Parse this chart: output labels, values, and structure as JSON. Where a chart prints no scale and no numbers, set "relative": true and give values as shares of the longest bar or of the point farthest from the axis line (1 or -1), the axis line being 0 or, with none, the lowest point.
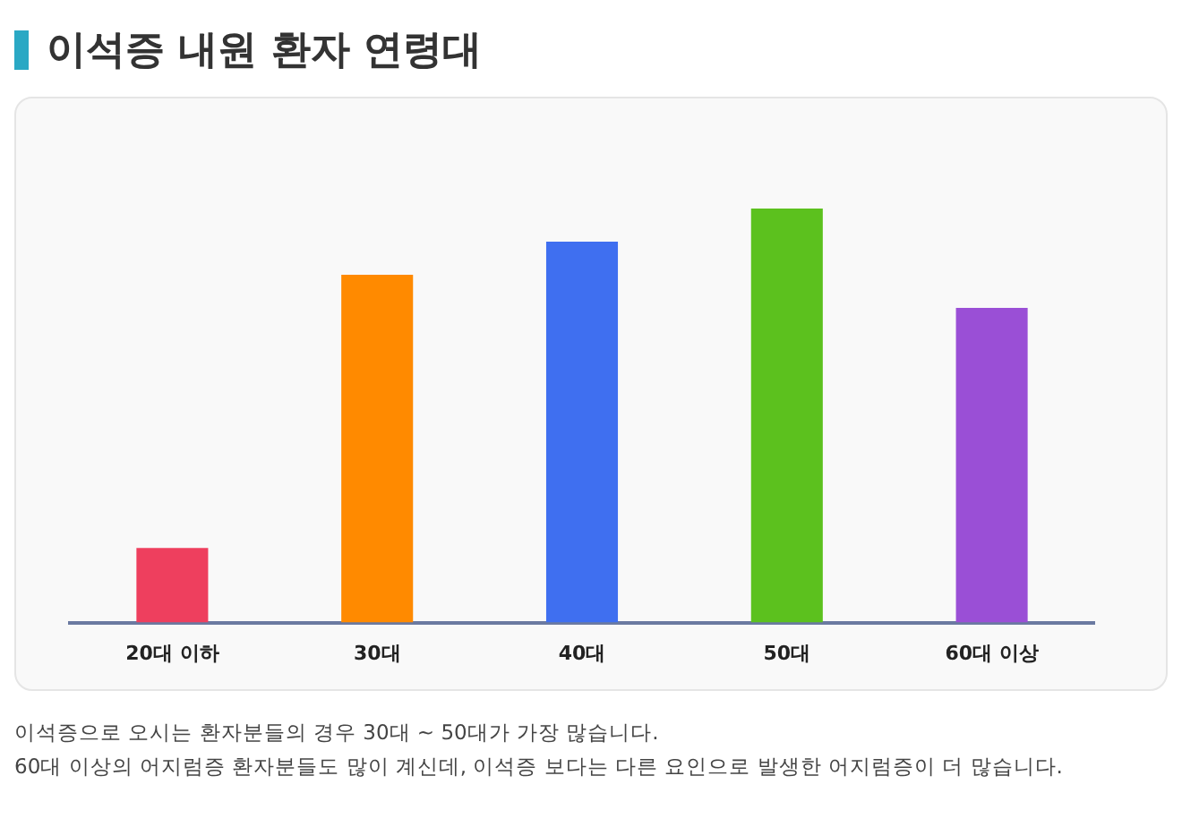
{
  "chart_data": {
    "type": "bar",
    "title": "이석증 내원 환자 연령대",
    "categories": [
      "20대 이하",
      "30대",
      "40대",
      "50대",
      "60대 이상"
    ],
    "values": [
      0.18,
      0.84,
      0.92,
      1,
      0.76
    ],
    "colors": [
      "#ee3f5e",
      "#ff8a00",
      "#3f6ff0",
      "#5cc11e",
      "#9a4fd6"
    ],
    "relative": true,
    "legend": false,
    "annotations": [
      "이석증으로 오시는 환자분들의 경우 30대 ~ 50대가 가장 많습니다.",
      "60대 이상의 어지럼증 환자분들도 많이 계신데, 이석증 보다는 다른 요인으로 발생한 어지럼증이 더 많습니다."
    ]
  }
}
